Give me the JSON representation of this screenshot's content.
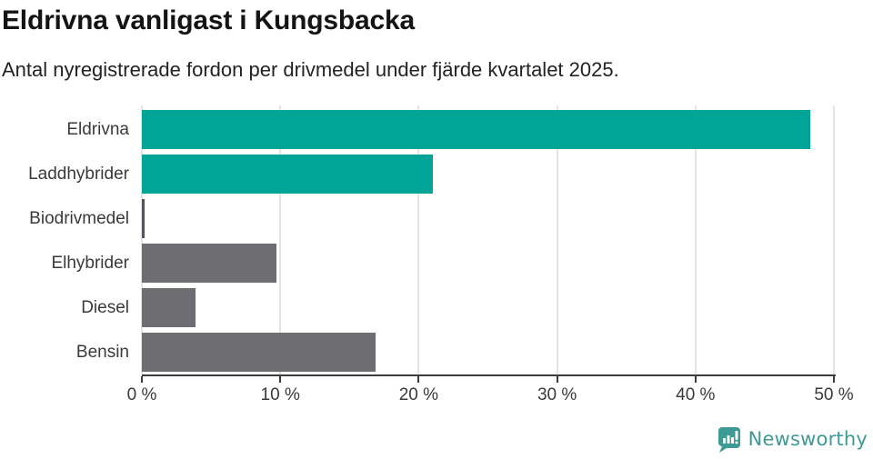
{
  "header": {
    "title": "Eldrivna vanligast i Kungsbacka",
    "subtitle": "Antal nyregistrerade fordon per drivmedel under fjärde kvartalet 2025."
  },
  "chart_data": {
    "type": "bar",
    "orientation": "horizontal",
    "title": "Eldrivna vanligast i Kungsbacka",
    "subtitle": "Antal nyregistrerade fordon per drivmedel under fjärde kvartalet 2025.",
    "categories": [
      "Eldrivna",
      "Laddhybrider",
      "Biodrivmedel",
      "Elhybrider",
      "Diesel",
      "Bensin"
    ],
    "values": [
      48.3,
      21.0,
      0.2,
      9.7,
      3.9,
      16.9
    ],
    "unit": "%",
    "xlim": [
      0,
      50
    ],
    "x_tick_values": [
      0,
      10,
      20,
      30,
      40,
      50
    ],
    "x_tick_labels": [
      "0 %",
      "10 %",
      "20 %",
      "30 %",
      "40 %",
      "50 %"
    ],
    "grid": true,
    "legend": "none",
    "bar_colors": [
      "#00a598",
      "#00a598",
      "#55545c",
      "#6d6d72",
      "#6d6d72",
      "#6d6d72"
    ]
  },
  "colors": {
    "accent_teal": "#00a598",
    "neutral_gray": "#6d6d72",
    "axis": "#3d3d3d",
    "gridline": "#e4e4e4",
    "text_dark": "#141414",
    "brand_teal": "#3e9a94"
  },
  "branding": {
    "logo_label": "Newsworthy",
    "logo_icon": "newsworthy-speech-bubble-bar-chart-icon"
  }
}
